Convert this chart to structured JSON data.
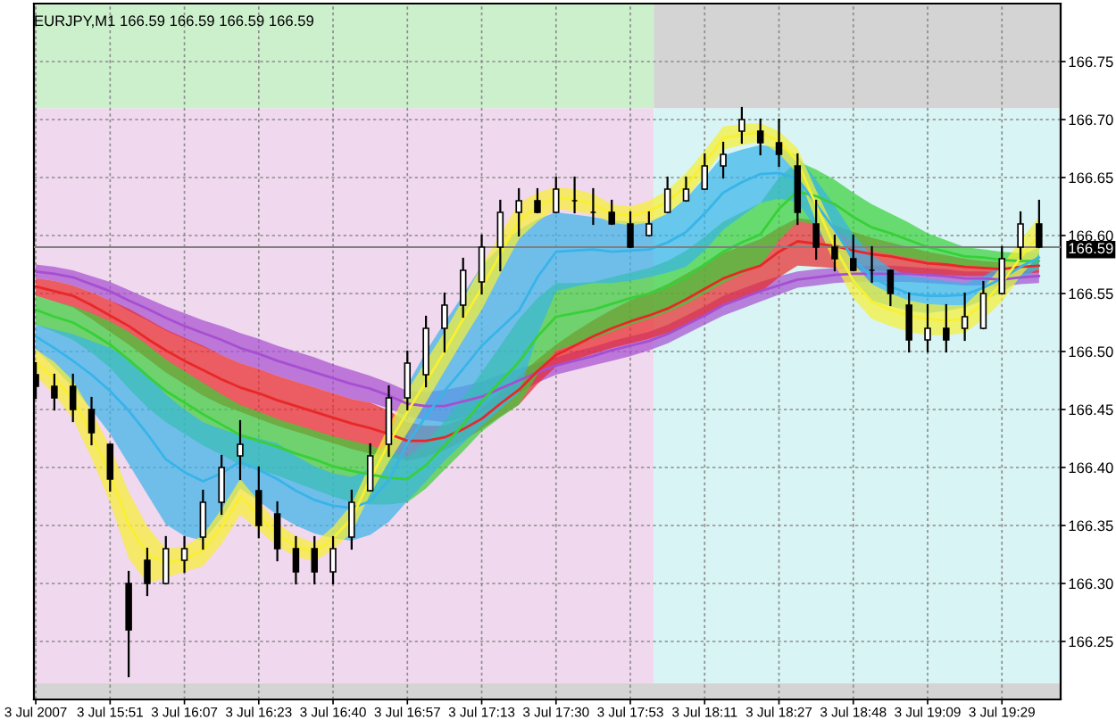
{
  "chart_data": {
    "type": "line",
    "title": "EURJPY,M1 166.59 166.59 166.59 166.59",
    "categories": [
      "3 Jul 2007",
      null,
      null,
      null,
      "3 Jul 15:51",
      null,
      null,
      null,
      "3 Jul 16:07",
      null,
      null,
      null,
      "3 Jul 16:23",
      null,
      null,
      null,
      "3 Jul 16:40",
      null,
      null,
      null,
      "3 Jul 16:57",
      null,
      null,
      null,
      "3 Jul 17:13",
      null,
      null,
      null,
      "3 Jul 17:30",
      null,
      null,
      null,
      "3 Jul 17:53",
      null,
      null,
      null,
      "3 Jul 18:11",
      null,
      null,
      null,
      "3 Jul 18:27",
      null,
      null,
      null,
      "3 Jul 18:48",
      null,
      null,
      null,
      "3 Jul 19:09",
      null,
      null,
      null,
      "3 Jul 19:29",
      null,
      null
    ],
    "ylim": [
      166.2,
      166.8
    ],
    "yticks": [
      166.25,
      {
        "value": 166.3,
        "label": "166.30"
      },
      166.35,
      {
        "value": 166.4,
        "label": "166.40"
      },
      166.45,
      {
        "value": 166.5,
        "label": "166.50"
      },
      166.55,
      {
        "value": 166.6,
        "label": "166.60"
      },
      166.65,
      {
        "value": 166.7,
        "label": "166.70"
      },
      166.75
    ],
    "grid": true,
    "ref_lines": [
      {
        "axis": "y",
        "value": 166.59,
        "label": "166.59",
        "color": "#808080"
      }
    ],
    "series": [
      {
        "color": "#a64fd0",
        "values": [
          166.569,
          166.567,
          166.564,
          166.558,
          166.552,
          166.544,
          166.537,
          166.529,
          166.522,
          166.516,
          166.51,
          166.503,
          166.498,
          166.492,
          166.487,
          166.482,
          166.477,
          166.472,
          166.468,
          166.462,
          166.455,
          166.453,
          166.453,
          166.457,
          166.461,
          166.468,
          166.475,
          166.482,
          166.488,
          166.492,
          166.496,
          166.501,
          166.505,
          166.509,
          166.515,
          166.523,
          166.531,
          166.54,
          166.546,
          166.552,
          166.557,
          166.562,
          166.564,
          166.566,
          166.567,
          166.567,
          166.567,
          166.567,
          166.566,
          166.565,
          166.563,
          166.563,
          166.562,
          166.564,
          166.565
        ],
        "lower": [
          166.563,
          166.561,
          166.557,
          166.551,
          166.544,
          166.535,
          166.527,
          166.518,
          166.511,
          166.504,
          166.497,
          166.49,
          166.485,
          166.479,
          166.474,
          166.469,
          166.464,
          166.459,
          166.456,
          166.451,
          166.444,
          166.441,
          166.439,
          166.443,
          166.448,
          166.456,
          166.464,
          166.473,
          166.48,
          166.484,
          166.488,
          166.492,
          166.496,
          166.501,
          166.507,
          166.515,
          166.523,
          166.531,
          166.537,
          166.543,
          166.549,
          166.555,
          166.557,
          166.559,
          166.56,
          166.56,
          166.56,
          166.56,
          166.559,
          166.558,
          166.557,
          166.557,
          166.556,
          166.558,
          166.559
        ],
        "upper": [
          166.575,
          166.573,
          166.57,
          166.565,
          166.56,
          166.553,
          166.546,
          166.539,
          166.533,
          166.527,
          166.522,
          166.516,
          166.511,
          166.505,
          166.5,
          166.495,
          166.489,
          166.484,
          166.479,
          166.473,
          166.466,
          166.465,
          166.467,
          166.47,
          166.474,
          166.48,
          166.485,
          166.49,
          166.495,
          166.5,
          166.504,
          166.509,
          166.513,
          166.517,
          166.523,
          166.531,
          166.539,
          166.548,
          166.554,
          166.56,
          166.565,
          166.569,
          166.571,
          166.572,
          166.573,
          166.574,
          166.574,
          166.573,
          166.572,
          166.571,
          166.569,
          166.569,
          166.568,
          166.569,
          166.57
        ]
      },
      {
        "color": "#e82828",
        "values": [
          166.556,
          166.552,
          166.548,
          166.54,
          166.531,
          166.522,
          166.511,
          166.501,
          166.492,
          166.484,
          166.476,
          166.469,
          166.464,
          166.458,
          166.453,
          166.448,
          166.443,
          166.438,
          166.434,
          166.429,
          166.423,
          166.423,
          166.426,
          166.433,
          166.442,
          166.455,
          166.467,
          166.483,
          166.497,
          166.505,
          166.513,
          166.52,
          166.526,
          166.531,
          166.537,
          166.545,
          166.554,
          166.563,
          166.569,
          166.574,
          166.586,
          166.595,
          166.593,
          166.591,
          166.587,
          166.584,
          166.582,
          166.579,
          166.576,
          166.575,
          166.573,
          166.572,
          166.571,
          166.573,
          166.574
        ],
        "lower": [
          166.548,
          166.543,
          166.538,
          166.528,
          166.517,
          166.506,
          166.494,
          166.482,
          166.472,
          166.462,
          166.454,
          166.448,
          166.442,
          166.436,
          166.431,
          166.426,
          166.421,
          166.416,
          166.412,
          166.409,
          166.406,
          166.409,
          166.415,
          166.423,
          166.433,
          166.444,
          166.454,
          166.472,
          166.487,
          166.493,
          166.498,
          166.503,
          166.507,
          166.511,
          166.516,
          166.523,
          166.531,
          166.54,
          166.546,
          166.551,
          166.564,
          166.574,
          166.573,
          166.572,
          166.571,
          166.57,
          166.569,
          166.567,
          166.566,
          166.566,
          166.565,
          166.565,
          166.565,
          166.567,
          166.568
        ],
        "upper": [
          166.563,
          166.561,
          166.557,
          166.551,
          166.544,
          166.537,
          166.528,
          166.519,
          166.512,
          166.505,
          166.497,
          166.49,
          166.485,
          166.479,
          166.474,
          166.469,
          166.464,
          166.459,
          166.456,
          166.449,
          166.439,
          166.436,
          166.436,
          166.442,
          166.451,
          166.465,
          166.479,
          166.493,
          166.506,
          166.517,
          166.527,
          166.536,
          166.544,
          166.551,
          166.558,
          166.567,
          166.576,
          166.585,
          166.591,
          166.597,
          166.607,
          166.615,
          166.613,
          166.609,
          166.603,
          166.598,
          166.594,
          166.59,
          166.586,
          166.583,
          166.58,
          166.578,
          166.577,
          166.578,
          166.579
        ]
      },
      {
        "color": "#38d038",
        "values": [
          166.536,
          166.53,
          166.525,
          166.516,
          166.506,
          166.493,
          166.479,
          166.466,
          166.456,
          166.446,
          166.437,
          166.428,
          166.423,
          166.418,
          166.412,
          166.407,
          166.401,
          166.397,
          166.394,
          166.391,
          166.39,
          166.402,
          166.419,
          166.437,
          166.457,
          166.474,
          166.491,
          166.513,
          166.53,
          166.533,
          166.536,
          166.541,
          166.546,
          166.55,
          166.556,
          166.564,
          166.575,
          166.586,
          166.594,
          166.601,
          166.623,
          166.638,
          166.634,
          166.627,
          166.616,
          166.607,
          166.602,
          166.596,
          166.59,
          166.586,
          166.582,
          166.581,
          166.579,
          166.578,
          166.578
        ],
        "lower": [
          166.523,
          166.517,
          166.51,
          166.499,
          166.486,
          166.468,
          166.452,
          166.439,
          166.429,
          166.419,
          166.411,
          166.402,
          166.398,
          166.393,
          166.387,
          166.381,
          166.375,
          166.37,
          166.368,
          166.368,
          166.37,
          166.382,
          166.398,
          166.414,
          166.431,
          166.443,
          166.454,
          166.48,
          166.501,
          166.506,
          166.511,
          166.517,
          166.523,
          166.528,
          166.534,
          166.541,
          166.55,
          166.559,
          166.567,
          166.574,
          166.596,
          166.612,
          166.61,
          166.605,
          166.594,
          166.587,
          166.584,
          166.581,
          166.578,
          166.576,
          166.574,
          166.573,
          166.571,
          166.571,
          166.571
        ],
        "upper": [
          166.548,
          166.543,
          166.539,
          166.533,
          166.526,
          166.517,
          166.506,
          166.493,
          166.483,
          166.473,
          166.463,
          166.454,
          166.448,
          166.442,
          166.437,
          166.432,
          166.427,
          166.423,
          166.419,
          166.414,
          166.409,
          166.422,
          166.44,
          166.46,
          166.482,
          166.505,
          166.528,
          166.546,
          166.559,
          166.559,
          166.56,
          166.564,
          166.568,
          166.572,
          166.578,
          166.587,
          166.599,
          166.612,
          166.62,
          166.628,
          166.65,
          166.664,
          166.657,
          166.648,
          166.637,
          166.627,
          166.619,
          166.611,
          166.602,
          166.596,
          166.59,
          166.588,
          166.586,
          166.585,
          166.585
        ]
      },
      {
        "color": "#38b4e8",
        "values": [
          166.513,
          166.503,
          166.492,
          166.48,
          166.466,
          166.449,
          166.429,
          166.407,
          166.396,
          166.388,
          166.395,
          166.405,
          166.398,
          166.39,
          166.38,
          166.372,
          166.367,
          166.365,
          166.371,
          166.389,
          166.421,
          166.444,
          166.466,
          166.485,
          166.505,
          166.52,
          166.535,
          166.564,
          166.586,
          166.587,
          166.588,
          166.586,
          166.587,
          166.588,
          166.594,
          166.603,
          166.619,
          166.637,
          166.646,
          166.653,
          166.654,
          166.649,
          166.627,
          166.605,
          166.58,
          166.564,
          166.556,
          166.55,
          166.548,
          166.548,
          166.549,
          166.555,
          166.563,
          166.573,
          166.581
        ],
        "lower": [
          166.502,
          166.486,
          166.469,
          166.45,
          166.429,
          166.403,
          166.377,
          166.351,
          166.341,
          166.337,
          166.356,
          166.382,
          166.371,
          166.359,
          166.35,
          166.343,
          166.339,
          166.337,
          166.342,
          166.353,
          166.371,
          166.388,
          166.406,
          166.421,
          166.436,
          166.45,
          166.464,
          166.514,
          166.552,
          166.556,
          166.559,
          166.559,
          166.561,
          166.564,
          166.568,
          166.573,
          166.587,
          166.605,
          166.617,
          166.628,
          166.632,
          166.629,
          166.606,
          166.583,
          166.558,
          166.544,
          166.539,
          166.535,
          166.533,
          166.535,
          166.538,
          166.544,
          166.551,
          166.562,
          166.572
        ],
        "upper": [
          166.523,
          166.519,
          166.515,
          166.509,
          166.503,
          166.494,
          166.481,
          166.463,
          166.45,
          166.439,
          166.433,
          166.428,
          166.425,
          166.421,
          166.41,
          166.401,
          166.395,
          166.392,
          166.399,
          166.425,
          166.471,
          166.5,
          166.525,
          166.549,
          166.574,
          166.59,
          166.605,
          166.614,
          166.62,
          166.618,
          166.616,
          166.613,
          166.612,
          166.612,
          166.619,
          166.632,
          166.65,
          166.669,
          166.674,
          166.678,
          166.676,
          166.669,
          166.648,
          166.626,
          166.601,
          166.583,
          166.572,
          166.565,
          166.563,
          166.561,
          166.559,
          166.565,
          166.574,
          166.583,
          166.59
        ]
      },
      {
        "color": "#f8f030",
        "values": [
          166.491,
          166.477,
          166.459,
          166.428,
          166.394,
          166.351,
          166.325,
          166.318,
          166.321,
          166.329,
          166.349,
          166.375,
          166.359,
          166.342,
          166.332,
          166.327,
          166.339,
          166.356,
          166.39,
          166.421,
          166.448,
          166.474,
          166.5,
          166.528,
          166.555,
          166.584,
          166.613,
          166.625,
          166.633,
          166.631,
          166.627,
          166.619,
          166.617,
          166.621,
          166.629,
          166.643,
          166.663,
          166.684,
          166.687,
          166.689,
          166.681,
          166.664,
          166.626,
          166.59,
          166.561,
          166.543,
          166.536,
          166.531,
          166.528,
          166.527,
          166.528,
          166.542,
          166.559,
          166.581,
          166.6
        ],
        "lower": [
          166.479,
          166.463,
          166.442,
          166.408,
          166.37,
          166.322,
          166.3,
          166.305,
          166.31,
          166.315,
          166.334,
          166.359,
          166.346,
          166.332,
          166.323,
          166.319,
          166.329,
          166.344,
          166.377,
          166.405,
          166.43,
          166.456,
          166.483,
          166.51,
          166.536,
          166.567,
          166.597,
          166.612,
          166.623,
          166.621,
          166.618,
          166.611,
          166.609,
          166.611,
          166.619,
          166.632,
          166.652,
          166.674,
          166.678,
          166.681,
          166.671,
          166.653,
          166.612,
          166.575,
          166.546,
          166.528,
          166.522,
          166.517,
          166.514,
          166.514,
          166.516,
          166.528,
          166.543,
          166.565,
          166.584
        ],
        "upper": [
          166.502,
          166.491,
          166.475,
          166.448,
          166.418,
          166.379,
          166.349,
          166.33,
          166.332,
          166.342,
          166.364,
          166.39,
          166.371,
          166.352,
          166.341,
          166.335,
          166.349,
          166.368,
          166.403,
          166.436,
          166.466,
          166.492,
          166.517,
          166.545,
          166.574,
          166.601,
          166.628,
          166.637,
          166.642,
          166.64,
          166.636,
          166.627,
          166.625,
          166.63,
          166.639,
          166.654,
          166.673,
          166.694,
          166.696,
          166.697,
          166.69,
          166.675,
          166.639,
          166.605,
          166.576,
          166.558,
          166.55,
          166.544,
          166.541,
          166.54,
          166.54,
          166.555,
          166.574,
          166.596,
          166.616
        ]
      },
      {
        "type": "candlestick",
        "color": "#000000",
        "ohlc": [
          [
            166.48,
            166.49,
            166.46,
            166.47
          ],
          [
            166.47,
            166.48,
            166.45,
            166.46
          ],
          [
            166.47,
            166.48,
            166.44,
            166.45
          ],
          [
            166.45,
            166.46,
            166.42,
            166.43
          ],
          [
            166.42,
            166.42,
            166.38,
            166.39
          ],
          [
            166.3,
            166.31,
            166.22,
            166.26
          ],
          [
            166.32,
            166.33,
            166.29,
            166.3
          ],
          [
            166.3,
            166.34,
            166.3,
            166.33
          ],
          [
            166.32,
            166.34,
            166.31,
            166.33
          ],
          [
            166.34,
            166.38,
            166.33,
            166.37
          ],
          [
            166.37,
            166.41,
            166.36,
            166.4
          ],
          [
            166.41,
            166.44,
            166.39,
            166.42
          ],
          [
            166.38,
            166.4,
            166.34,
            166.35
          ],
          [
            166.36,
            166.37,
            166.32,
            166.33
          ],
          [
            166.33,
            166.34,
            166.3,
            166.31
          ],
          [
            166.33,
            166.34,
            166.3,
            166.31
          ],
          [
            166.31,
            166.34,
            166.3,
            166.33
          ],
          [
            166.34,
            166.38,
            166.33,
            166.37
          ],
          [
            166.38,
            166.42,
            166.38,
            166.41
          ],
          [
            166.42,
            166.47,
            166.41,
            166.46
          ],
          [
            166.46,
            166.5,
            166.45,
            166.49
          ],
          [
            166.48,
            166.53,
            166.47,
            166.52
          ],
          [
            166.52,
            166.55,
            166.5,
            166.54
          ],
          [
            166.54,
            166.58,
            166.53,
            166.57
          ],
          [
            166.56,
            166.6,
            166.55,
            166.59
          ],
          [
            166.59,
            166.63,
            166.57,
            166.62
          ],
          [
            166.62,
            166.64,
            166.6,
            166.63
          ],
          [
            166.63,
            166.64,
            166.62,
            166.62
          ],
          [
            166.62,
            166.65,
            166.62,
            166.64
          ],
          [
            166.63,
            166.65,
            166.62,
            166.63
          ],
          [
            166.62,
            166.64,
            166.61,
            166.62
          ],
          [
            166.62,
            166.63,
            166.61,
            166.61
          ],
          [
            166.61,
            166.62,
            166.59,
            166.59
          ],
          [
            166.6,
            166.62,
            166.6,
            166.61
          ],
          [
            166.62,
            166.65,
            166.62,
            166.64
          ],
          [
            166.63,
            166.65,
            166.63,
            166.64
          ],
          [
            166.64,
            166.67,
            166.64,
            166.66
          ],
          [
            166.66,
            166.68,
            166.65,
            166.67
          ],
          [
            166.69,
            166.71,
            166.68,
            166.7
          ],
          [
            166.69,
            166.7,
            166.67,
            166.68
          ],
          [
            166.68,
            166.7,
            166.66,
            166.67
          ],
          [
            166.66,
            166.67,
            166.61,
            166.62
          ],
          [
            166.61,
            166.63,
            166.58,
            166.59
          ],
          [
            166.59,
            166.6,
            166.57,
            166.58
          ],
          [
            166.58,
            166.6,
            166.57,
            166.57
          ],
          [
            166.57,
            166.59,
            166.56,
            166.57
          ],
          [
            166.57,
            166.57,
            166.54,
            166.55
          ],
          [
            166.54,
            166.55,
            166.5,
            166.51
          ],
          [
            166.51,
            166.54,
            166.5,
            166.52
          ],
          [
            166.52,
            166.54,
            166.5,
            166.51
          ],
          [
            166.52,
            166.55,
            166.51,
            166.53
          ],
          [
            166.52,
            166.56,
            166.52,
            166.55
          ],
          [
            166.55,
            166.59,
            166.55,
            166.58
          ],
          [
            166.59,
            166.62,
            166.58,
            166.61
          ],
          [
            166.61,
            166.63,
            166.59,
            166.59
          ]
        ]
      }
    ]
  }
}
